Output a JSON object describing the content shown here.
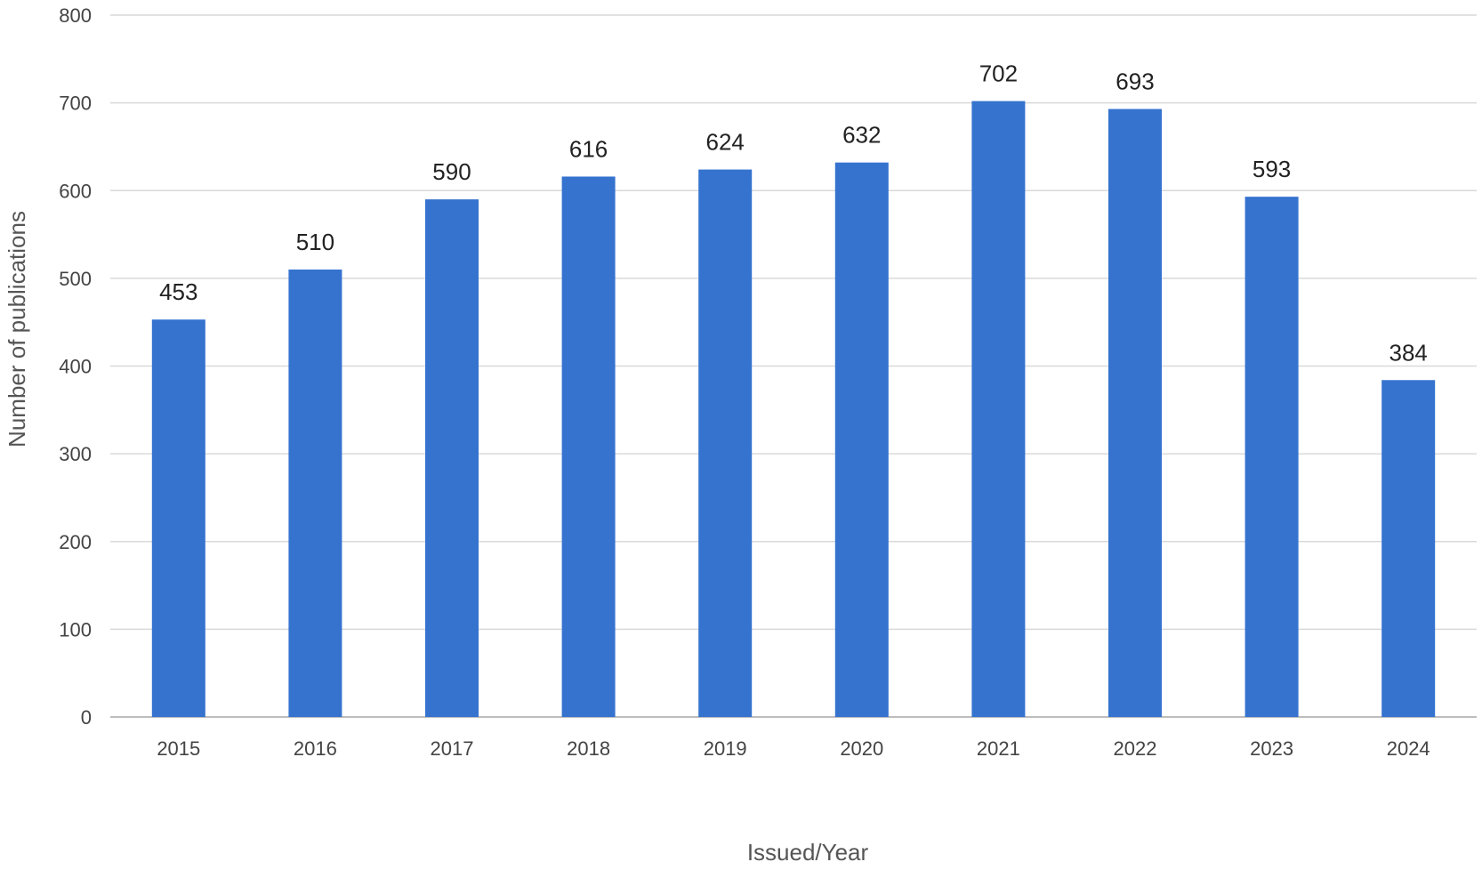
{
  "colors": {
    "bar": "#3573cf",
    "grid": "#d9d9d9",
    "text": "#444444"
  },
  "chart_data": {
    "type": "bar",
    "title": "",
    "xlabel": "Issued/Year",
    "ylabel": "Number of publications",
    "categories": [
      "2015",
      "2016",
      "2017",
      "2018",
      "2019",
      "2020",
      "2021",
      "2022",
      "2023",
      "2024"
    ],
    "values": [
      453,
      510,
      590,
      616,
      624,
      632,
      702,
      693,
      593,
      384
    ],
    "data_labels": [
      "453",
      "510",
      "590",
      "616",
      "624",
      "632",
      "702",
      "693",
      "593",
      "384"
    ],
    "ylim": [
      0,
      800
    ],
    "yticks": [
      "0",
      "100",
      "200",
      "300",
      "400",
      "500",
      "600",
      "700",
      "800"
    ],
    "grid": true,
    "legend": "none"
  }
}
